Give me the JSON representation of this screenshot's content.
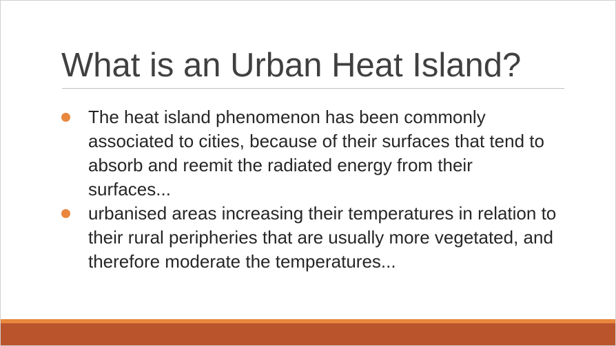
{
  "slide": {
    "title": "What is an Urban Heat Island?",
    "bullets": [
      {
        "text": "The heat island phenomenon has been commonly associated to cities, because of their surfaces that tend to absorb and reemit the radiated energy from their surfaces..."
      },
      {
        "text": "urbanised areas increasing their temperatures in relation to their rural peripheries that are usually more vegetated, and therefore moderate the temperatures..."
      }
    ]
  },
  "colors": {
    "bullet": "#E8873D",
    "footer_accent": "#E8873D",
    "footer_main": "#B9542D",
    "title_text": "#404040",
    "body_text": "#262626"
  }
}
